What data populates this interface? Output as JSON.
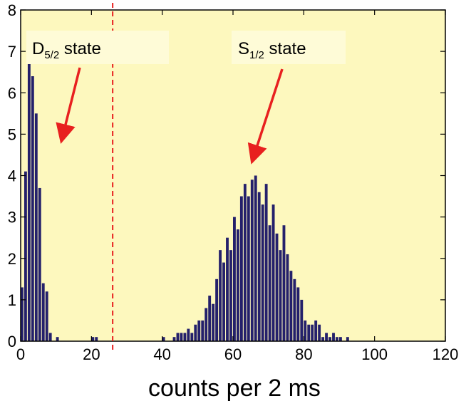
{
  "chart_data": {
    "type": "bar",
    "xlabel": "counts per 2 ms",
    "ylabel": "",
    "xlim": [
      0,
      120
    ],
    "ylim": [
      0,
      8
    ],
    "xticks": [
      "0",
      "20",
      "40",
      "60",
      "80",
      "100",
      "120"
    ],
    "yticks": [
      "0",
      "1",
      "2",
      "3",
      "4",
      "5",
      "6",
      "7",
      "8"
    ],
    "bin_width": 1,
    "threshold_x": 26,
    "colors": {
      "background": "#fdf8be",
      "bar": "#24206b",
      "threshold": "#e8201f",
      "arrow": "#e8201f"
    },
    "annotations": [
      {
        "base": "D",
        "sub": "5/2",
        "tail": " state",
        "points_to": [
          12,
          5
        ]
      },
      {
        "base": "S",
        "sub": "1/2",
        "tail": " state",
        "points_to": [
          66,
          4.5
        ]
      }
    ],
    "bars": [
      {
        "x": 0,
        "y": 1.3
      },
      {
        "x": 1,
        "y": 4.1
      },
      {
        "x": 2,
        "y": 7.0
      },
      {
        "x": 3,
        "y": 6.4
      },
      {
        "x": 4,
        "y": 5.5
      },
      {
        "x": 5,
        "y": 3.7
      },
      {
        "x": 6,
        "y": 1.4
      },
      {
        "x": 7,
        "y": 1.2
      },
      {
        "x": 8,
        "y": 0.2
      },
      {
        "x": 10,
        "y": 0.1
      },
      {
        "x": 20,
        "y": 0.1
      },
      {
        "x": 21,
        "y": 0.1
      },
      {
        "x": 40,
        "y": 0.1
      },
      {
        "x": 43,
        "y": 0.1
      },
      {
        "x": 44,
        "y": 0.2
      },
      {
        "x": 45,
        "y": 0.2
      },
      {
        "x": 46,
        "y": 0.2
      },
      {
        "x": 47,
        "y": 0.3
      },
      {
        "x": 48,
        "y": 0.2
      },
      {
        "x": 49,
        "y": 0.4
      },
      {
        "x": 50,
        "y": 0.5
      },
      {
        "x": 51,
        "y": 0.5
      },
      {
        "x": 52,
        "y": 0.8
      },
      {
        "x": 53,
        "y": 1.1
      },
      {
        "x": 54,
        "y": 0.9
      },
      {
        "x": 55,
        "y": 1.5
      },
      {
        "x": 56,
        "y": 2.2
      },
      {
        "x": 57,
        "y": 1.9
      },
      {
        "x": 58,
        "y": 2.5
      },
      {
        "x": 59,
        "y": 2.2
      },
      {
        "x": 60,
        "y": 3.0
      },
      {
        "x": 61,
        "y": 2.7
      },
      {
        "x": 62,
        "y": 3.5
      },
      {
        "x": 63,
        "y": 3.8
      },
      {
        "x": 64,
        "y": 3.5
      },
      {
        "x": 65,
        "y": 3.9
      },
      {
        "x": 66,
        "y": 4.0
      },
      {
        "x": 67,
        "y": 3.6
      },
      {
        "x": 68,
        "y": 3.3
      },
      {
        "x": 69,
        "y": 3.8
      },
      {
        "x": 70,
        "y": 2.8
      },
      {
        "x": 71,
        "y": 3.3
      },
      {
        "x": 72,
        "y": 2.6
      },
      {
        "x": 73,
        "y": 2.2
      },
      {
        "x": 74,
        "y": 2.8
      },
      {
        "x": 75,
        "y": 2.1
      },
      {
        "x": 76,
        "y": 1.7
      },
      {
        "x": 77,
        "y": 1.5
      },
      {
        "x": 78,
        "y": 1.3
      },
      {
        "x": 79,
        "y": 1.0
      },
      {
        "x": 80,
        "y": 0.5
      },
      {
        "x": 81,
        "y": 0.4
      },
      {
        "x": 82,
        "y": 0.4
      },
      {
        "x": 83,
        "y": 0.5
      },
      {
        "x": 84,
        "y": 0.4
      },
      {
        "x": 85,
        "y": 0.1
      },
      {
        "x": 86,
        "y": 0.2
      },
      {
        "x": 87,
        "y": 0.1
      },
      {
        "x": 88,
        "y": 0.2
      },
      {
        "x": 89,
        "y": 0.1
      },
      {
        "x": 90,
        "y": 0.1
      },
      {
        "x": 92,
        "y": 0.1
      }
    ]
  }
}
